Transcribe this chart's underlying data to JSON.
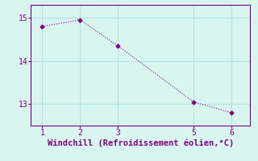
{
  "x": [
    1,
    2,
    3,
    5,
    6
  ],
  "y": [
    14.8,
    14.95,
    14.35,
    13.05,
    12.8
  ],
  "line_color": "#800080",
  "marker": "D",
  "marker_size": 2.5,
  "background_color": "#d8f5f0",
  "grid_color": "#aadddd",
  "axis_color": "#800080",
  "xlabel": "Windchill (Refroidissement éolien,°C)",
  "xlabel_fontsize": 7.5,
  "tick_fontsize": 7,
  "xlim": [
    0.7,
    6.5
  ],
  "ylim": [
    12.5,
    15.3
  ],
  "xticks": [
    1,
    2,
    3,
    5,
    6
  ],
  "yticks": [
    13,
    14,
    15
  ]
}
